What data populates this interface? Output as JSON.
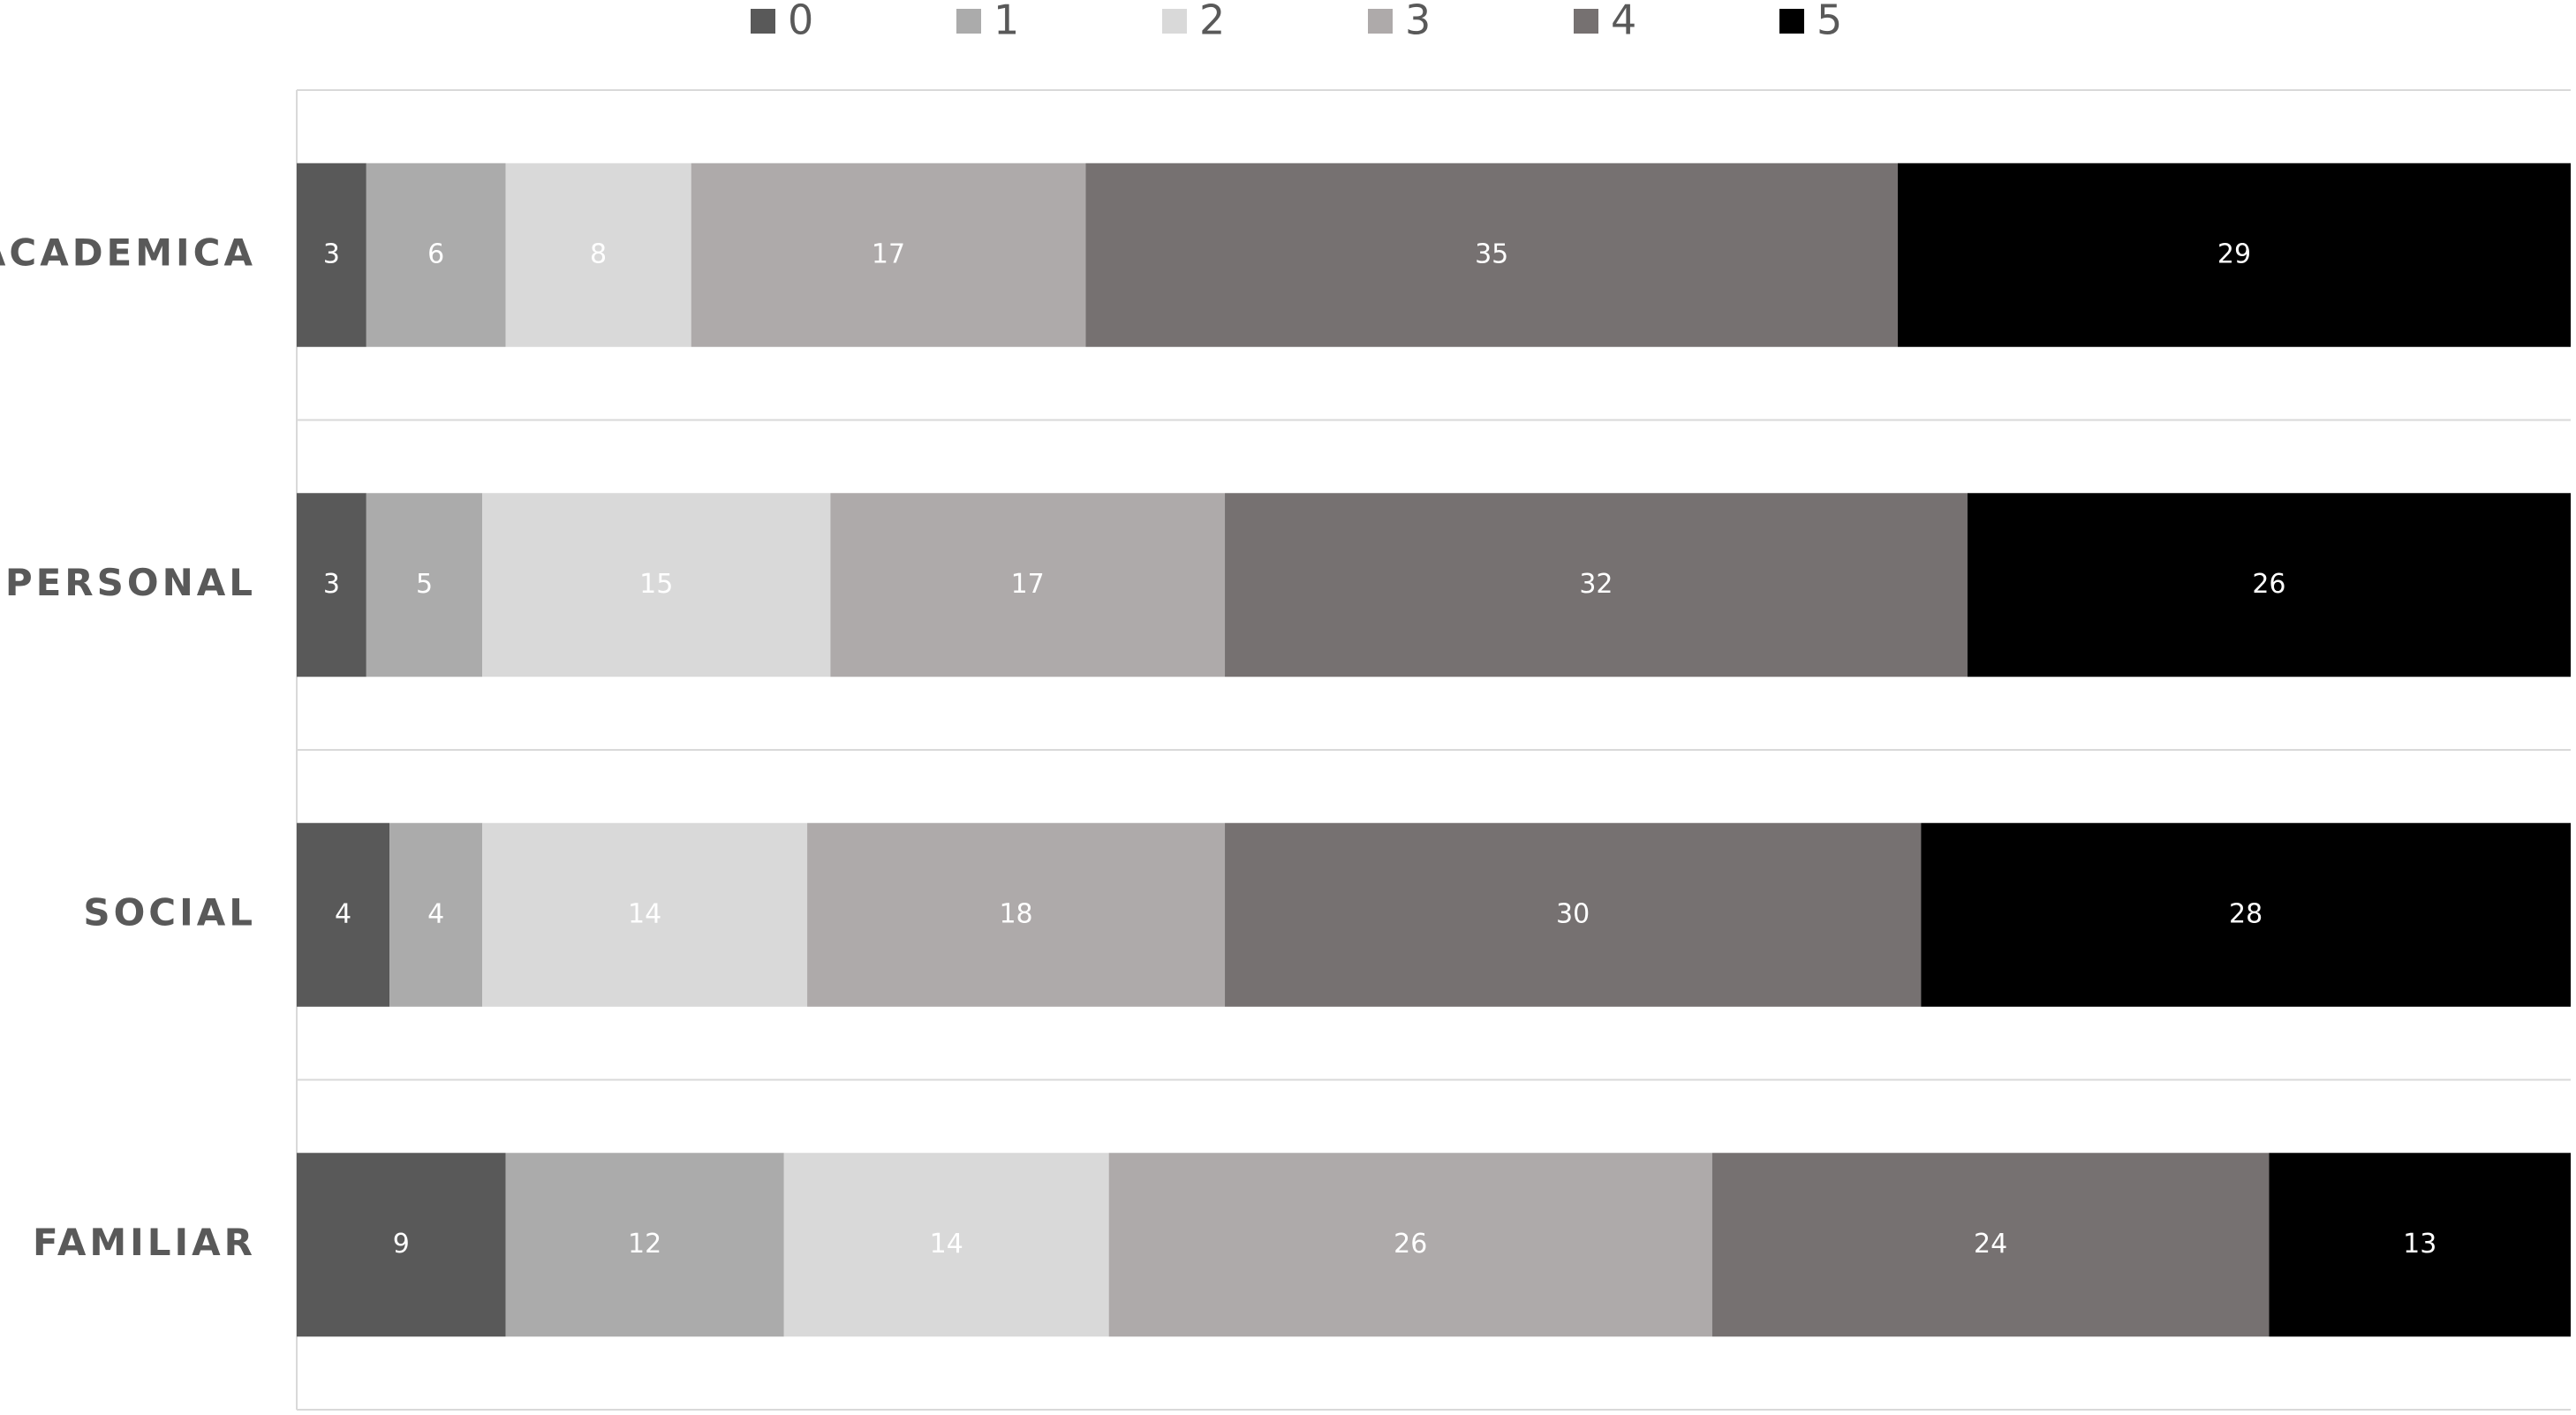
{
  "chart_data": {
    "type": "bar",
    "orientation": "horizontal",
    "stacking": "percent",
    "categories": [
      "ACADEMICA",
      "PERSONAL",
      "SOCIAL",
      "FAMILIAR"
    ],
    "series": [
      {
        "name": "0",
        "color": "#595959",
        "values": [
          3,
          3,
          4,
          9
        ]
      },
      {
        "name": "1",
        "color": "#ababab",
        "values": [
          6,
          5,
          4,
          12
        ]
      },
      {
        "name": "2",
        "color": "#d9d9d9",
        "values": [
          8,
          15,
          14,
          14
        ]
      },
      {
        "name": "3",
        "color": "#aeaaaa",
        "values": [
          17,
          17,
          18,
          26
        ]
      },
      {
        "name": "4",
        "color": "#767171",
        "values": [
          35,
          32,
          30,
          24
        ]
      },
      {
        "name": "5",
        "color": "#000000",
        "values": [
          29,
          26,
          28,
          13
        ]
      }
    ],
    "grid": true,
    "legend": "top"
  }
}
